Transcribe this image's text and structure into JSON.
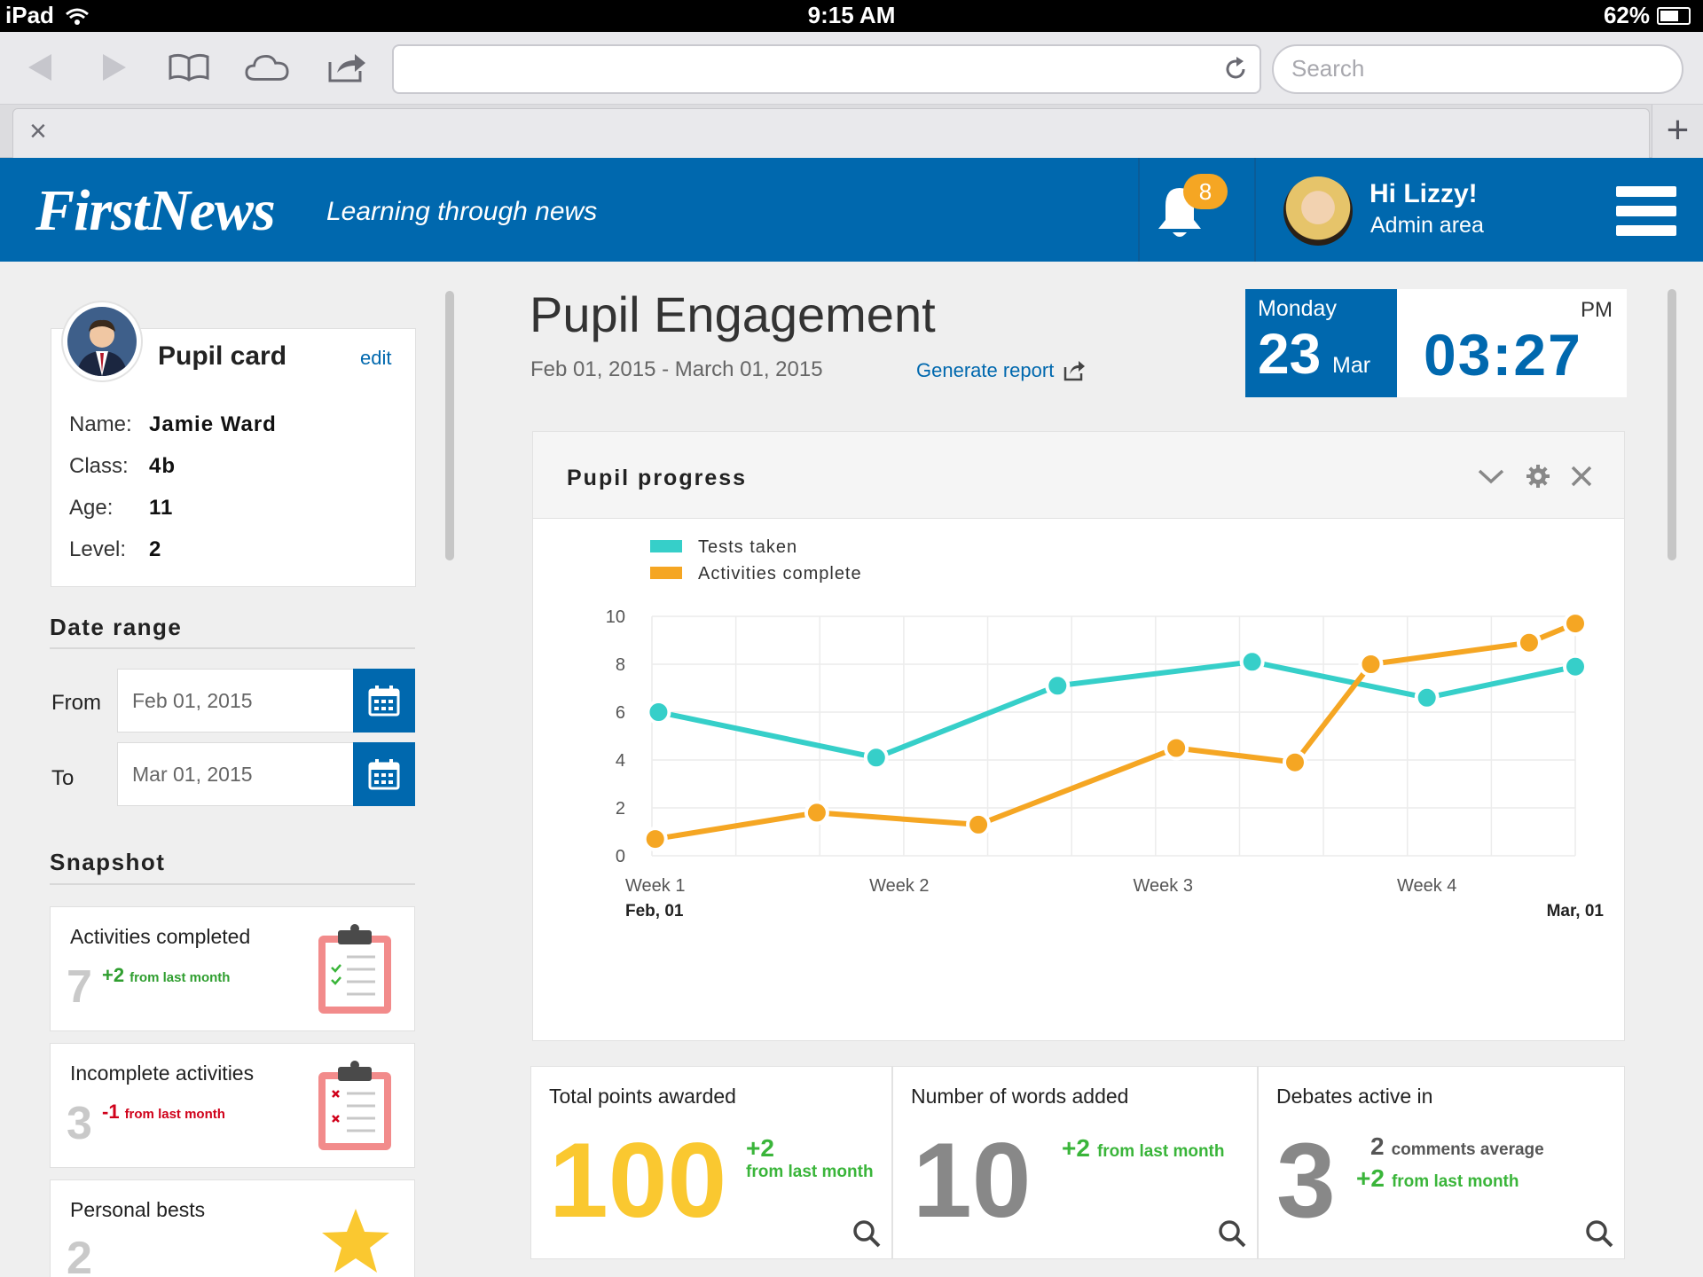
{
  "status_bar": {
    "device": "iPad",
    "time": "9:15 AM",
    "battery": "62%"
  },
  "browser": {
    "search_placeholder": "Search",
    "close_tab": "×",
    "new_tab": "+"
  },
  "header": {
    "logo": "FirstNews",
    "tagline": "Learning through news",
    "notification_count": "8",
    "greeting": "Hi Lizzy!",
    "subtitle": "Admin area"
  },
  "pupil_card": {
    "title": "Pupil card",
    "edit": "edit",
    "fields": [
      {
        "label": "Name:",
        "value": "Jamie Ward"
      },
      {
        "label": "Class:",
        "value": "4b"
      },
      {
        "label": "Age:",
        "value": "11"
      },
      {
        "label": "Level:",
        "value": "2"
      }
    ]
  },
  "date_range": {
    "title": "Date range",
    "from_label": "From",
    "from_value": "Feb 01, 2015",
    "to_label": "To",
    "to_value": "Mar 01, 2015"
  },
  "snapshot": {
    "title": "Snapshot",
    "items": [
      {
        "label": "Activities completed",
        "value": "7",
        "delta": "+2",
        "delta_text": "from last month",
        "delta_color": "#2f9e2f",
        "icon": "clipboard-check-icon"
      },
      {
        "label": "Incomplete activities",
        "value": "3",
        "delta": "-1",
        "delta_text": "from last month",
        "delta_color": "#d0021b",
        "icon": "clipboard-cross-icon"
      },
      {
        "label": "Personal bests",
        "value": "2",
        "icon": "star-icon"
      }
    ]
  },
  "main": {
    "title": "Pupil Engagement",
    "date_range": "Feb 01, 2015 - March 01, 2015",
    "generate_report": "Generate report",
    "date_widget": {
      "weekday": "Monday",
      "day": "23",
      "month": "Mar",
      "ampm": "PM",
      "time": "03:27"
    }
  },
  "chart_panel": {
    "title": "Pupil progress"
  },
  "chart_data": {
    "type": "line",
    "title": "Pupil progress",
    "legend": [
      "Tests taken",
      "Activities complete"
    ],
    "legend_placement": "top-left",
    "ylim": [
      0,
      10
    ],
    "yticks": [
      "0",
      "2",
      "4",
      "6",
      "8",
      "10"
    ],
    "xlim": [
      0,
      28
    ],
    "x_tick_labels": [
      {
        "x": 0,
        "label": "Week 1"
      },
      {
        "x": 7.5,
        "label": "Week 2"
      },
      {
        "x": 15.5,
        "label": "Week 3"
      },
      {
        "x": 23.5,
        "label": "Week 4"
      }
    ],
    "x_start_label": "Feb, 01",
    "x_end_label": "Mar, 01",
    "grid": true,
    "series": [
      {
        "name": "Tests taken",
        "color": "#36cfc9",
        "x": [
          0.2,
          6.8,
          12.3,
          18.2,
          23.5,
          28
        ],
        "y": [
          6.0,
          4.1,
          7.1,
          8.1,
          6.6,
          7.9
        ]
      },
      {
        "name": "Activities complete",
        "color": "#f5a623",
        "x": [
          0.1,
          5.0,
          9.9,
          15.9,
          19.5,
          21.8,
          26.6,
          28
        ],
        "y": [
          0.7,
          1.8,
          1.3,
          4.5,
          3.9,
          8.0,
          8.9,
          9.7
        ]
      }
    ]
  },
  "stats": [
    {
      "title": "Total points awarded",
      "value": "100",
      "value_color": "#fac830",
      "delta": "+2",
      "delta_text": "from last month"
    },
    {
      "title": "Number of words added",
      "value": "10",
      "value_color": "#888888",
      "delta": "+2",
      "delta_text": "from last month"
    },
    {
      "title": "Debates active in",
      "value": "3",
      "value_color": "#888888",
      "extra_value": "2",
      "extra_text": "comments average",
      "delta": "+2",
      "delta_text": "from last month"
    }
  ]
}
